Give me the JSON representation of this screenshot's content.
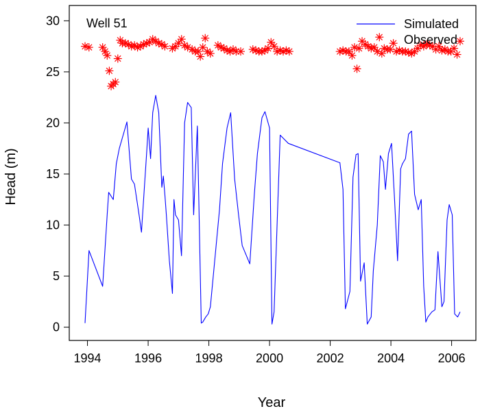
{
  "chart_data": {
    "type": "line",
    "title": "Well 51",
    "xlabel": "Year",
    "ylabel": "Head (m)",
    "xlim": [
      1993.4,
      2006.8
    ],
    "ylim": [
      -1.3,
      31.5
    ],
    "xticks": [
      1994,
      1996,
      1998,
      2000,
      2002,
      2004,
      2006
    ],
    "yticks": [
      0,
      5,
      10,
      15,
      20,
      25,
      30
    ],
    "grid": false,
    "legend_position": "top-right",
    "colors": {
      "simulated": "#0000ff",
      "observed": "#ff0000"
    },
    "series": [
      {
        "name": "Simulated",
        "style": "line",
        "x": [
          1993.92,
          1994.05,
          1994.5,
          1994.65,
          1994.7,
          1994.85,
          1994.95,
          1995.05,
          1995.3,
          1995.45,
          1995.55,
          1995.7,
          1995.78,
          1995.85,
          1995.95,
          1996.0,
          1996.08,
          1996.15,
          1996.25,
          1996.35,
          1996.45,
          1996.5,
          1996.55,
          1996.6,
          1996.7,
          1996.8,
          1996.85,
          1996.9,
          1997.0,
          1997.1,
          1997.2,
          1997.3,
          1997.42,
          1997.5,
          1997.62,
          1997.75,
          1997.8,
          1997.9,
          1997.98,
          1998.05,
          1998.35,
          1998.45,
          1998.6,
          1998.72,
          1998.85,
          1998.98,
          1999.1,
          1999.35,
          1999.5,
          1999.6,
          1999.75,
          1999.85,
          2000.0,
          2000.08,
          2000.15,
          2000.35,
          2000.45,
          2000.62,
          2002.32,
          2002.42,
          2002.5,
          2002.65,
          2002.75,
          2002.85,
          2002.92,
          2003.0,
          2003.12,
          2003.22,
          2003.35,
          2003.42,
          2003.55,
          2003.65,
          2003.75,
          2003.82,
          2003.92,
          2004.02,
          2004.12,
          2004.22,
          2004.32,
          2004.38,
          2004.48,
          2004.58,
          2004.68,
          2004.78,
          2004.9,
          2005.0,
          2005.08,
          2005.15,
          2005.22,
          2005.35,
          2005.45,
          2005.55,
          2005.68,
          2005.75,
          2005.85,
          2005.92,
          2006.02,
          2006.1,
          2006.2,
          2006.28
        ],
        "y": [
          0.4,
          7.5,
          4.0,
          11.0,
          13.2,
          12.5,
          16.0,
          17.5,
          20.1,
          14.5,
          14.0,
          11.0,
          9.3,
          12.5,
          17.0,
          19.5,
          16.5,
          21.0,
          22.7,
          21.0,
          13.7,
          14.8,
          13.0,
          11.0,
          6.5,
          3.3,
          12.5,
          11.0,
          10.5,
          7.0,
          20.0,
          22.0,
          21.5,
          11.0,
          19.7,
          0.4,
          0.5,
          1.0,
          1.3,
          2.0,
          11.5,
          16.0,
          19.5,
          21.0,
          14.5,
          11.0,
          8.0,
          6.2,
          13.0,
          17.0,
          20.5,
          21.1,
          19.5,
          0.3,
          1.5,
          18.8,
          18.5,
          18.0,
          16.1,
          13.5,
          1.8,
          3.5,
          14.7,
          16.9,
          17.0,
          4.5,
          6.3,
          0.3,
          1.0,
          5.5,
          10.0,
          16.8,
          16.2,
          13.5,
          17.0,
          18.0,
          12.5,
          6.5,
          15.5,
          16.0,
          16.5,
          18.9,
          19.2,
          13.0,
          11.5,
          12.5,
          4.0,
          0.5,
          1.0,
          1.5,
          1.7,
          7.4,
          2.0,
          2.5,
          10.5,
          12.0,
          11.0,
          1.3,
          1.0,
          1.5
        ]
      },
      {
        "name": "Observed",
        "style": "points",
        "marker": "asterisk",
        "x": [
          1993.92,
          1994.05,
          1994.5,
          1994.58,
          1994.65,
          1994.72,
          1994.78,
          1994.85,
          1994.92,
          1995.0,
          1995.08,
          1995.15,
          1995.25,
          1995.35,
          1995.45,
          1995.55,
          1995.65,
          1995.75,
          1995.85,
          1995.95,
          1996.05,
          1996.15,
          1996.25,
          1996.35,
          1996.45,
          1996.55,
          1996.8,
          1996.9,
          1997.0,
          1997.1,
          1997.2,
          1997.3,
          1997.45,
          1997.55,
          1997.65,
          1997.72,
          1997.8,
          1997.88,
          1997.95,
          1998.05,
          1998.3,
          1998.4,
          1998.5,
          1998.6,
          1998.7,
          1998.8,
          1998.9,
          1999.05,
          1999.45,
          1999.55,
          1999.65,
          1999.75,
          1999.85,
          1999.95,
          2000.05,
          2000.15,
          2000.25,
          2000.35,
          2000.45,
          2000.55,
          2000.65,
          2002.32,
          2002.42,
          2002.52,
          2002.62,
          2002.72,
          2002.8,
          2002.88,
          2002.95,
          2003.05,
          2003.15,
          2003.25,
          2003.35,
          2003.45,
          2003.55,
          2003.62,
          2003.7,
          2003.78,
          2003.88,
          2003.98,
          2004.08,
          2004.18,
          2004.28,
          2004.38,
          2004.48,
          2004.58,
          2004.68,
          2004.78,
          2004.88,
          2004.98,
          2005.08,
          2005.18,
          2005.28,
          2005.38,
          2005.48,
          2005.58,
          2005.68,
          2005.78,
          2005.88,
          2005.98,
          2006.08,
          2006.18,
          2006.28
        ],
        "y": [
          27.5,
          27.4,
          27.4,
          27.0,
          26.6,
          25.1,
          23.6,
          23.8,
          24.0,
          26.3,
          28.1,
          27.8,
          27.8,
          27.7,
          27.5,
          27.6,
          27.4,
          27.5,
          27.7,
          27.8,
          27.9,
          28.2,
          28.0,
          27.8,
          27.7,
          27.5,
          27.3,
          27.5,
          27.8,
          28.2,
          27.6,
          27.4,
          27.2,
          27.0,
          27.0,
          26.5,
          27.4,
          28.3,
          27.0,
          26.8,
          27.6,
          27.4,
          27.3,
          27.1,
          27.0,
          27.2,
          27.0,
          27.0,
          27.2,
          27.1,
          27.0,
          27.0,
          27.1,
          27.3,
          27.9,
          27.5,
          27.0,
          27.1,
          27.0,
          27.1,
          27.0,
          27.0,
          27.1,
          27.0,
          27.0,
          26.6,
          27.4,
          25.3,
          27.3,
          28.0,
          27.7,
          27.5,
          27.3,
          27.4,
          27.0,
          28.4,
          26.8,
          27.3,
          27.2,
          27.2,
          27.8,
          27.0,
          27.1,
          27.0,
          27.0,
          26.9,
          26.8,
          27.0,
          27.3,
          27.6,
          27.5,
          27.7,
          27.6,
          27.5,
          27.2,
          27.5,
          27.1,
          27.2,
          27.0,
          27.0,
          27.3,
          26.7,
          28.0
        ]
      }
    ]
  }
}
